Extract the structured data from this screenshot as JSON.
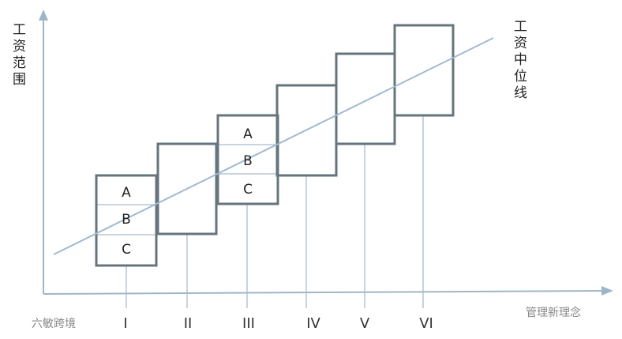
{
  "y_axis_label": "工资范围",
  "median_label": "工资中位线",
  "grades": [
    {
      "label": "I",
      "tiers": [
        "A",
        "B",
        "C"
      ]
    },
    {
      "label": "II"
    },
    {
      "label": "III",
      "tiers": [
        "A",
        "B",
        "C"
      ]
    },
    {
      "label": "IV"
    },
    {
      "label": "V"
    },
    {
      "label": "VI"
    }
  ],
  "watermarks": [
    "六敏跨境",
    "管理新理念"
  ]
}
